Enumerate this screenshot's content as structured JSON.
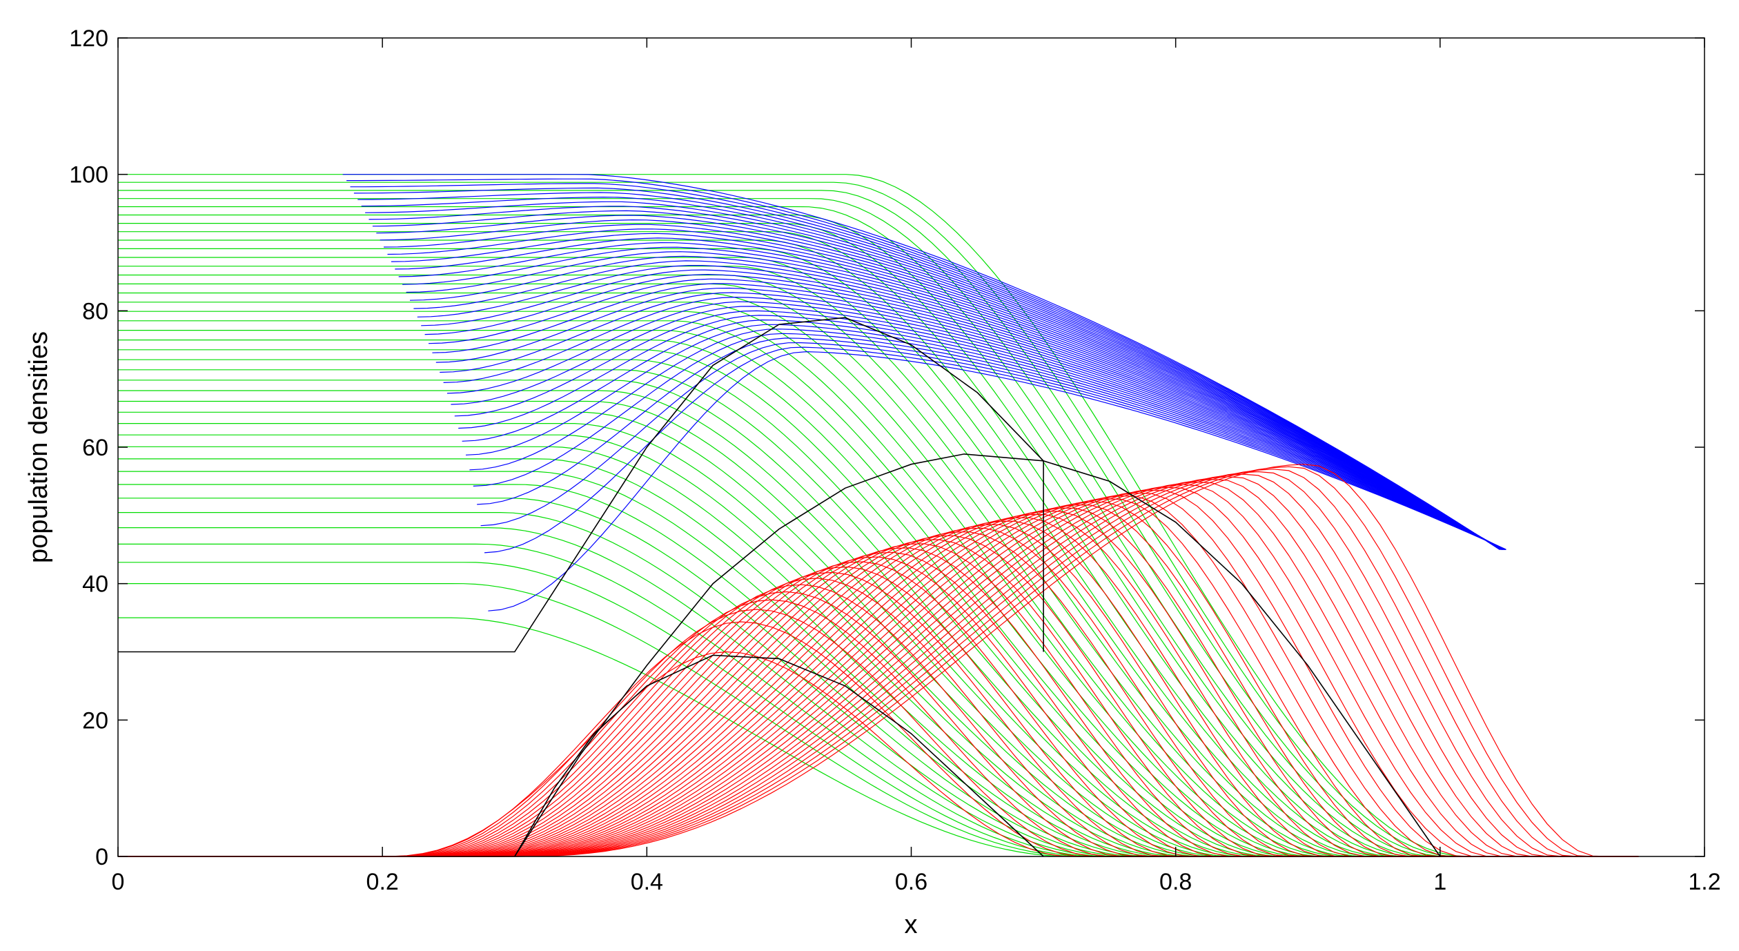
{
  "chart_data": {
    "type": "line",
    "title": "",
    "xlabel": "x",
    "ylabel": "population densities",
    "xlim": [
      0,
      1.2
    ],
    "ylim": [
      0,
      120
    ],
    "xticks": [
      0,
      0.2,
      0.4,
      0.6,
      0.8,
      1,
      1.2
    ],
    "yticks": [
      0,
      20,
      40,
      60,
      80,
      100,
      120
    ],
    "xtick_labels": [
      "0",
      "0.2",
      "0.4",
      "0.6",
      "0.8",
      "1",
      "1.2"
    ],
    "ytick_labels": [
      "0",
      "20",
      "40",
      "60",
      "80",
      "100",
      "120"
    ],
    "grid": false,
    "legend": false,
    "colors": {
      "green": "#00dd00",
      "blue": "#0000ff",
      "red": "#ff0000",
      "black": "#000000"
    },
    "series": [
      {
        "color": "black",
        "description_free": true,
        "x": [
          0,
          0.3,
          0.3,
          0.35,
          0.4,
          0.45,
          0.5,
          0.55,
          0.6,
          0.65,
          0.7,
          0.7
        ],
        "y": [
          30,
          30,
          30,
          45,
          60,
          72,
          78,
          79,
          75,
          68,
          58,
          30
        ]
      },
      {
        "color": "black",
        "x": [
          0.3,
          0.33,
          0.36,
          0.4,
          0.45,
          0.5,
          0.55,
          0.6,
          0.65,
          0.7
        ],
        "y": [
          0,
          10,
          18,
          25,
          29.5,
          29,
          25,
          18,
          9,
          0
        ]
      },
      {
        "color": "black",
        "x": [
          0.3,
          0.35,
          0.4,
          0.45,
          0.5,
          0.55,
          0.6,
          0.64,
          0.7,
          0.75,
          0.8,
          0.85,
          0.9,
          0.95,
          1.0
        ],
        "y": [
          0,
          15,
          28,
          40,
          48,
          54,
          57.5,
          59,
          58,
          55,
          49,
          40,
          28,
          14,
          0
        ]
      }
    ]
  }
}
